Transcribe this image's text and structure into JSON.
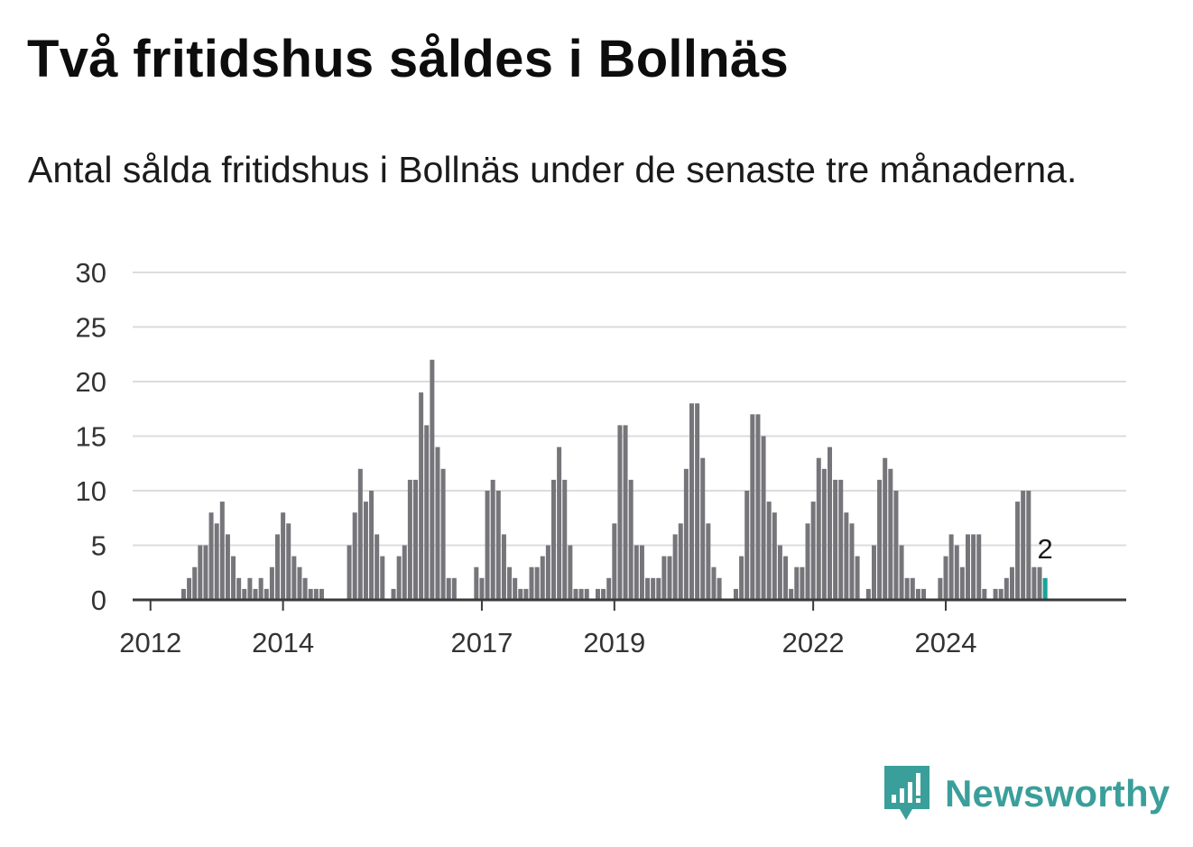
{
  "header": {
    "title": "Två fritidshus såldes i Bollnäs",
    "subtitle": "Antal sålda fritidshus i Bollnäs under de senaste tre månaderna."
  },
  "brand": {
    "name": "Newsworthy",
    "icon": "newsworthy-bar-chart-logo"
  },
  "colors": {
    "bar": "#76757a",
    "highlight": "#1aa39a",
    "grid": "#dcdcdc",
    "axis": "#3a3a3a",
    "brand": "#3a9f9a"
  },
  "chart_data": {
    "type": "bar",
    "title": "Två fritidshus såldes i Bollnäs",
    "subtitle": "Antal sålda fritidshus i Bollnäs under de senaste tre månaderna.",
    "xlabel": "",
    "ylabel": "",
    "ylim": [
      0,
      30
    ],
    "y_ticks": [
      0,
      5,
      10,
      15,
      20,
      25,
      30
    ],
    "grid": true,
    "legend": "none",
    "x_tick_labels": [
      {
        "label": "2012",
        "index": 2
      },
      {
        "label": "2014",
        "index": 26
      },
      {
        "label": "2017",
        "index": 62
      },
      {
        "label": "2019",
        "index": 86
      },
      {
        "label": "2022",
        "index": 122
      },
      {
        "label": "2024",
        "index": 146
      }
    ],
    "values": [
      0,
      0,
      0,
      0,
      0,
      0,
      0,
      0,
      1,
      2,
      3,
      5,
      5,
      8,
      7,
      9,
      6,
      4,
      2,
      1,
      2,
      1,
      2,
      1,
      3,
      6,
      8,
      7,
      4,
      3,
      2,
      1,
      1,
      1,
      0,
      0,
      0,
      0,
      5,
      8,
      12,
      9,
      10,
      6,
      4,
      0,
      1,
      4,
      5,
      11,
      11,
      19,
      16,
      22,
      14,
      12,
      2,
      2,
      0,
      0,
      0,
      3,
      2,
      10,
      11,
      10,
      6,
      3,
      2,
      1,
      1,
      3,
      3,
      4,
      5,
      11,
      14,
      11,
      5,
      1,
      1,
      1,
      0,
      1,
      1,
      2,
      7,
      16,
      16,
      11,
      5,
      5,
      2,
      2,
      2,
      4,
      4,
      6,
      7,
      12,
      18,
      18,
      13,
      7,
      3,
      2,
      0,
      0,
      1,
      4,
      10,
      17,
      17,
      15,
      9,
      8,
      5,
      4,
      1,
      3,
      3,
      7,
      9,
      13,
      12,
      14,
      11,
      11,
      8,
      7,
      4,
      0,
      1,
      5,
      11,
      13,
      12,
      10,
      5,
      2,
      2,
      1,
      1,
      0,
      0,
      2,
      4,
      6,
      5,
      3,
      6,
      6,
      6,
      1,
      0,
      1,
      1,
      2,
      3,
      9,
      10,
      10,
      3,
      3,
      2
    ],
    "highlight_last": true,
    "annotations": [
      {
        "label": "2",
        "target": "last-bar"
      }
    ]
  }
}
